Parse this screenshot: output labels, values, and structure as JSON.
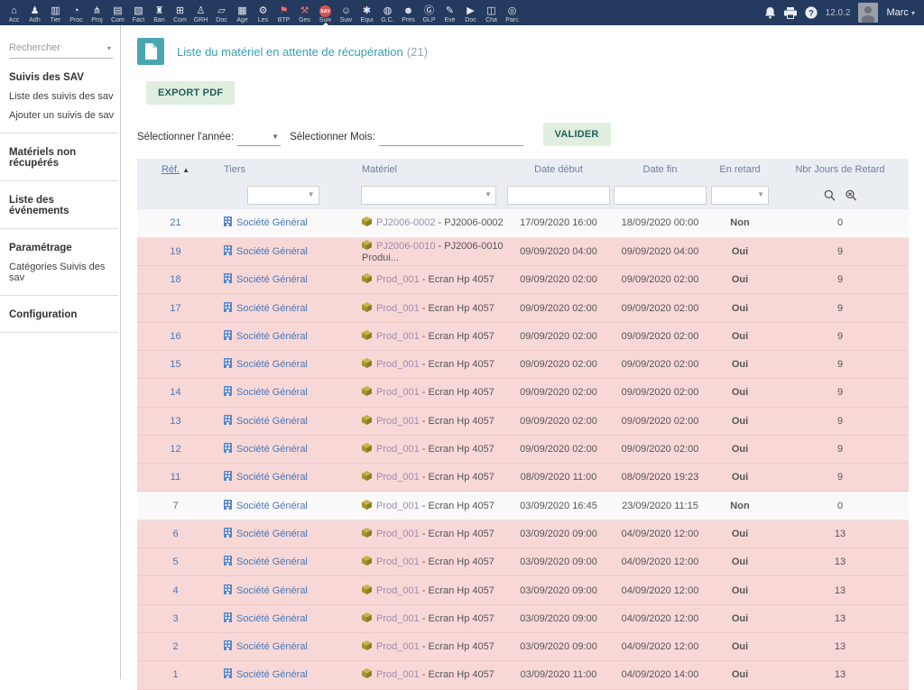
{
  "topbar": {
    "version": "12.0.2",
    "user_name": "Marc",
    "user_caret": "▾",
    "nav_items": [
      {
        "label": "Acc",
        "icon": "home"
      },
      {
        "label": "Adh",
        "icon": "members"
      },
      {
        "label": "Tier",
        "icon": "building"
      },
      {
        "label": "Proc",
        "icon": "process"
      },
      {
        "label": "Proj",
        "icon": "projects"
      },
      {
        "label": "Com",
        "icon": "briefcase"
      },
      {
        "label": "Fact",
        "icon": "invoices"
      },
      {
        "label": "Ban",
        "icon": "bank"
      },
      {
        "label": "Com",
        "icon": "accounting"
      },
      {
        "label": "GRH",
        "icon": "hr-person"
      },
      {
        "label": "Doc",
        "icon": "folder"
      },
      {
        "label": "Age",
        "icon": "calendar"
      },
      {
        "label": "Les",
        "icon": "wrench"
      },
      {
        "label": "BTP",
        "icon": "crane",
        "red": true
      },
      {
        "label": "Ges",
        "icon": "forklift",
        "red": true
      },
      {
        "label": "Suiv",
        "icon": "sav-badge",
        "active": true,
        "badge": "SAV"
      },
      {
        "label": "Suiv",
        "icon": "person-pin"
      },
      {
        "label": "Équi",
        "icon": "equipment"
      },
      {
        "label": "G.C.",
        "icon": "globe"
      },
      {
        "label": "Prés",
        "icon": "attendance"
      },
      {
        "label": "GLP",
        "icon": "glpi"
      },
      {
        "label": "Evé",
        "icon": "events"
      },
      {
        "label": "Doc",
        "icon": "media"
      },
      {
        "label": "Cha",
        "icon": "chart"
      },
      {
        "label": "Parc",
        "icon": "parc"
      }
    ]
  },
  "sidebar": {
    "search_placeholder": "Rechercher",
    "sections": [
      {
        "title": "Suivis des SAV",
        "items": [
          "Liste des suivis des sav",
          "Ajouter un suivis de sav"
        ]
      },
      {
        "title": "Matériels non récupérés",
        "items": []
      },
      {
        "title": "Liste des événements",
        "items": []
      },
      {
        "title": "Paramétrage",
        "items": [
          "Catégories Suivis des sav"
        ]
      },
      {
        "title": "Configuration",
        "items": []
      }
    ]
  },
  "main": {
    "title": "Liste du matériel en attente de récupération",
    "count": "(21)",
    "export_button": "EXPORT PDF",
    "year_label": "Sélectionner l'année:",
    "month_label": "Sélectionner Mois:",
    "validate_button": "VALIDER"
  },
  "table": {
    "columns": {
      "ref": "Réf.",
      "sort_arrow": "▲",
      "tiers": "Tiers",
      "materiel": "Matériel",
      "date_debut": "Date début",
      "date_fin": "Date fin",
      "en_retard": "En retard",
      "nbr_jours": "Nbr Jours de Retard"
    },
    "rows": [
      {
        "ref": "21",
        "tiers": "Société Général",
        "mat_link": "PJ2006-0002",
        "mat_rest": " - PJ2006-0002",
        "debut": "17/09/2020 16:00",
        "fin": "18/09/2020 00:00",
        "retard": "Non",
        "jours": "0",
        "late": false
      },
      {
        "ref": "19",
        "tiers": "Société Général",
        "mat_link": "PJ2006-0010",
        "mat_rest": " - PJ2006-0010 Produi...",
        "debut": "09/09/2020 04:00",
        "fin": "09/09/2020 04:00",
        "retard": "Oui",
        "jours": "9",
        "late": true
      },
      {
        "ref": "18",
        "tiers": "Société Général",
        "mat_link": "Prod_001",
        "mat_rest": " - Ecran Hp 4057",
        "debut": "09/09/2020 02:00",
        "fin": "09/09/2020 02:00",
        "retard": "Oui",
        "jours": "9",
        "late": true
      },
      {
        "ref": "17",
        "tiers": "Société Général",
        "mat_link": "Prod_001",
        "mat_rest": " - Ecran Hp 4057",
        "debut": "09/09/2020 02:00",
        "fin": "09/09/2020 02:00",
        "retard": "Oui",
        "jours": "9",
        "late": true
      },
      {
        "ref": "16",
        "tiers": "Société Général",
        "mat_link": "Prod_001",
        "mat_rest": " - Ecran Hp 4057",
        "debut": "09/09/2020 02:00",
        "fin": "09/09/2020 02:00",
        "retard": "Oui",
        "jours": "9",
        "late": true
      },
      {
        "ref": "15",
        "tiers": "Société Général",
        "mat_link": "Prod_001",
        "mat_rest": " - Ecran Hp 4057",
        "debut": "09/09/2020 02:00",
        "fin": "09/09/2020 02:00",
        "retard": "Oui",
        "jours": "9",
        "late": true
      },
      {
        "ref": "14",
        "tiers": "Société Général",
        "mat_link": "Prod_001",
        "mat_rest": " - Ecran Hp 4057",
        "debut": "09/09/2020 02:00",
        "fin": "09/09/2020 02:00",
        "retard": "Oui",
        "jours": "9",
        "late": true
      },
      {
        "ref": "13",
        "tiers": "Société Général",
        "mat_link": "Prod_001",
        "mat_rest": " - Ecran Hp 4057",
        "debut": "09/09/2020 02:00",
        "fin": "09/09/2020 02:00",
        "retard": "Oui",
        "jours": "9",
        "late": true
      },
      {
        "ref": "12",
        "tiers": "Société Général",
        "mat_link": "Prod_001",
        "mat_rest": " - Ecran Hp 4057",
        "debut": "09/09/2020 02:00",
        "fin": "09/09/2020 02:00",
        "retard": "Oui",
        "jours": "9",
        "late": true
      },
      {
        "ref": "11",
        "tiers": "Société Général",
        "mat_link": "Prod_001",
        "mat_rest": " - Ecran Hp 4057",
        "debut": "08/09/2020 11:00",
        "fin": "08/09/2020 19:23",
        "retard": "Oui",
        "jours": "9",
        "late": true
      },
      {
        "ref": "7",
        "tiers": "Société Général",
        "mat_link": "Prod_001",
        "mat_rest": " - Ecran Hp 4057",
        "debut": "03/09/2020 16:45",
        "fin": "23/09/2020 11:15",
        "retard": "Non",
        "jours": "0",
        "late": false
      },
      {
        "ref": "6",
        "tiers": "Société Général",
        "mat_link": "Prod_001",
        "mat_rest": " - Ecran Hp 4057",
        "debut": "03/09/2020 09:00",
        "fin": "04/09/2020 12:00",
        "retard": "Oui",
        "jours": "13",
        "late": true
      },
      {
        "ref": "5",
        "tiers": "Société Général",
        "mat_link": "Prod_001",
        "mat_rest": " - Ecran Hp 4057",
        "debut": "03/09/2020 09:00",
        "fin": "04/09/2020 12:00",
        "retard": "Oui",
        "jours": "13",
        "late": true
      },
      {
        "ref": "4",
        "tiers": "Société Général",
        "mat_link": "Prod_001",
        "mat_rest": " - Ecran Hp 4057",
        "debut": "03/09/2020 09:00",
        "fin": "04/09/2020 12:00",
        "retard": "Oui",
        "jours": "13",
        "late": true
      },
      {
        "ref": "3",
        "tiers": "Société Général",
        "mat_link": "Prod_001",
        "mat_rest": " - Ecran Hp 4057",
        "debut": "03/09/2020 09:00",
        "fin": "04/09/2020 12:00",
        "retard": "Oui",
        "jours": "13",
        "late": true
      },
      {
        "ref": "2",
        "tiers": "Société Général",
        "mat_link": "Prod_001",
        "mat_rest": " - Ecran Hp 4057",
        "debut": "03/09/2020 09:00",
        "fin": "04/09/2020 12:00",
        "retard": "Oui",
        "jours": "13",
        "late": true
      },
      {
        "ref": "1",
        "tiers": "Société Général",
        "mat_link": "Prod_001",
        "mat_rest": " - Ecran Hp 4057",
        "debut": "03/09/2020 11:00",
        "fin": "04/09/2020 14:00",
        "retard": "Oui",
        "jours": "13",
        "late": true
      }
    ]
  },
  "colors": {
    "topbar_bg": "#243a5e",
    "accent_teal": "#3a9db3",
    "button_bg": "#e0eedf",
    "button_text": "#1f5f58",
    "late_row_bg": "#f8d8d7",
    "header_bg": "#eaedf2",
    "link_blue": "#4a77b5",
    "link_mauve": "#9d8bb0",
    "sav_red": "#d9534f"
  }
}
